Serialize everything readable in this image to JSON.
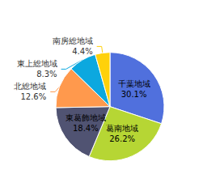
{
  "chart_data": {
    "type": "pie",
    "categories": [
      "千葉地域",
      "葛南地域",
      "東葛飾地域",
      "北総地域",
      "東上総地域",
      "南房総地域"
    ],
    "values": [
      30.1,
      26.2,
      18.4,
      12.6,
      8.3,
      4.4
    ],
    "value_labels": [
      "30.1%",
      "26.2%",
      "18.4%",
      "12.6%",
      "8.3%",
      "4.4%"
    ],
    "data_labels": true
  }
}
